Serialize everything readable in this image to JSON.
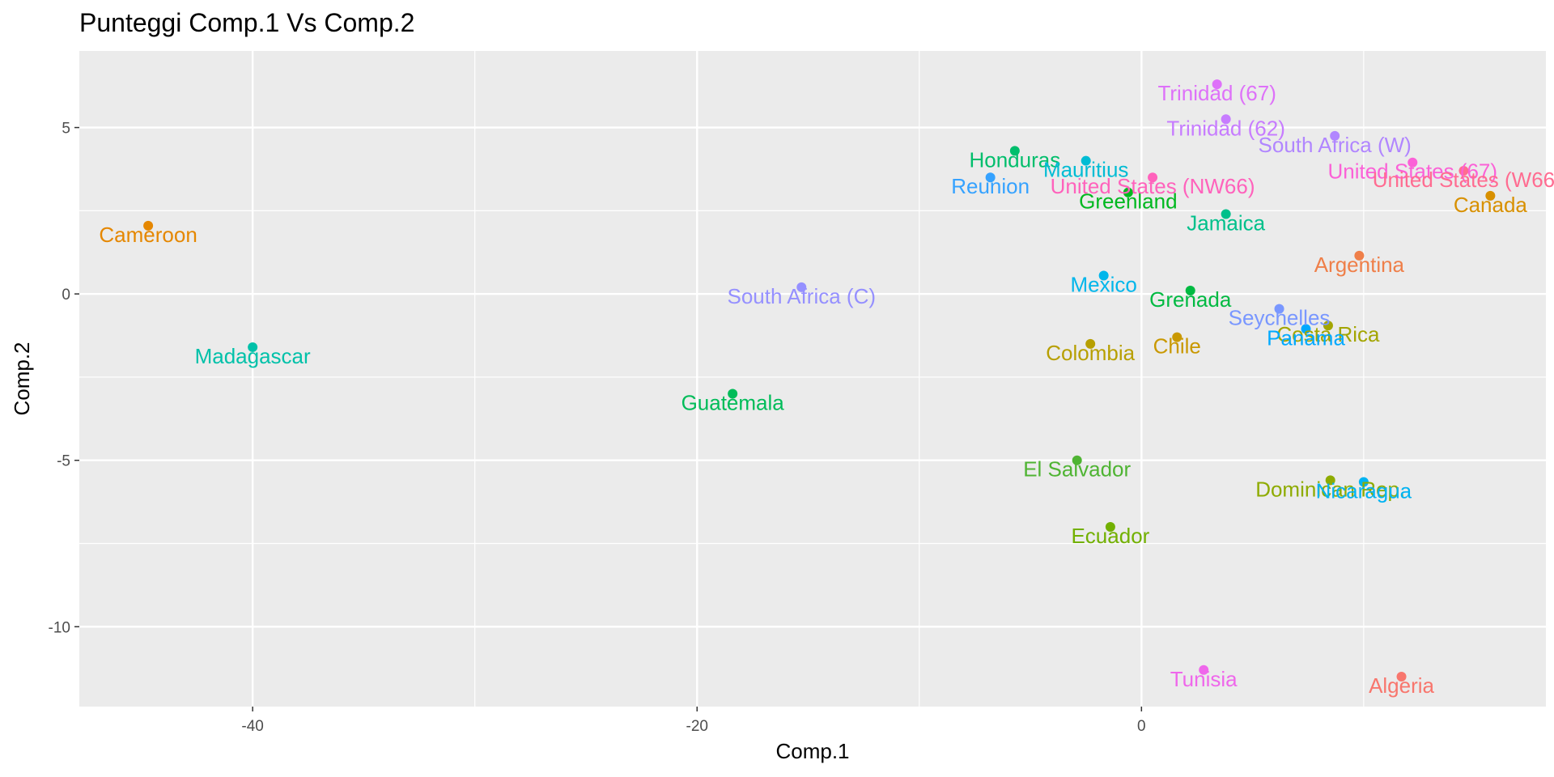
{
  "chart_data": {
    "type": "scatter",
    "title": "Punteggi Comp.1 Vs Comp.2",
    "xlabel": "Comp.1",
    "ylabel": "Comp.2",
    "xlim": [
      -47.8,
      18.2
    ],
    "ylim": [
      -12.4,
      7.3
    ],
    "x_ticks": [
      -40,
      -20,
      0
    ],
    "x_tick_labels": [
      "-40",
      "-20",
      "0"
    ],
    "y_ticks": [
      -10,
      -5,
      0,
      5
    ],
    "y_tick_labels": [
      "-10",
      "-5",
      "0",
      "5"
    ],
    "grid": true,
    "legend": "none",
    "panel_background": "#ebebeb",
    "points": [
      {
        "label": "Algeria",
        "x": 11.7,
        "y": -11.5,
        "color": "#F8766D"
      },
      {
        "label": "Argentina",
        "x": 9.8,
        "y": 1.15,
        "color": "#EF7F49"
      },
      {
        "label": "Cameroon",
        "x": -44.7,
        "y": 2.05,
        "color": "#E58700"
      },
      {
        "label": "Canada",
        "x": 15.7,
        "y": 2.95,
        "color": "#D89000"
      },
      {
        "label": "Chile",
        "x": 1.6,
        "y": -1.3,
        "color": "#C99800"
      },
      {
        "label": "Colombia",
        "x": -2.3,
        "y": -1.5,
        "color": "#B79F00"
      },
      {
        "label": "Costa Rica",
        "x": 8.4,
        "y": -0.95,
        "color": "#A3A500"
      },
      {
        "label": "Dominican Rep.",
        "x": 8.5,
        "y": -5.6,
        "color": "#8EAB00"
      },
      {
        "label": "Ecuador",
        "x": -1.4,
        "y": -7.0,
        "color": "#72B000"
      },
      {
        "label": "El Salvador",
        "x": -2.9,
        "y": -5.0,
        "color": "#4FB433"
      },
      {
        "label": "Greenland",
        "x": -0.6,
        "y": 3.05,
        "color": "#00B81F"
      },
      {
        "label": "Grenada",
        "x": 2.2,
        "y": 0.1,
        "color": "#00BA42"
      },
      {
        "label": "Guatemala",
        "x": -18.4,
        "y": -3.0,
        "color": "#00BC59"
      },
      {
        "label": "Honduras",
        "x": -5.7,
        "y": 4.3,
        "color": "#00BE6C"
      },
      {
        "label": "Jamaica",
        "x": 3.8,
        "y": 2.4,
        "color": "#00C08B"
      },
      {
        "label": "Madagascar",
        "x": -40.0,
        "y": -1.6,
        "color": "#00C1A9"
      },
      {
        "label": "Mauritius",
        "x": -2.5,
        "y": 4.0,
        "color": "#00BCD4"
      },
      {
        "label": "Mexico",
        "x": -1.7,
        "y": 0.55,
        "color": "#00B6EB"
      },
      {
        "label": "Nicaragua",
        "x": 10.0,
        "y": -5.65,
        "color": "#00B3F2"
      },
      {
        "label": "Panama",
        "x": 7.4,
        "y": -1.05,
        "color": "#00A9FF"
      },
      {
        "label": "Reunion",
        "x": -6.8,
        "y": 3.5,
        "color": "#35A2FF"
      },
      {
        "label": "Seychelles",
        "x": 6.2,
        "y": -0.45,
        "color": "#7997FF"
      },
      {
        "label": "South Africa (C)",
        "x": -15.3,
        "y": 0.2,
        "color": "#9590FF"
      },
      {
        "label": "South Africa (W)",
        "x": 8.7,
        "y": 4.75,
        "color": "#B186FF"
      },
      {
        "label": "Trinidad (62)",
        "x": 3.8,
        "y": 5.25,
        "color": "#C77CFF"
      },
      {
        "label": "Trinidad (67)",
        "x": 3.4,
        "y": 6.3,
        "color": "#DE71F9"
      },
      {
        "label": "Tunisia",
        "x": 2.8,
        "y": -11.3,
        "color": "#EF67EB"
      },
      {
        "label": "United States (67)",
        "x": 12.2,
        "y": 3.95,
        "color": "#FB61D7"
      },
      {
        "label": "United States (NW66)",
        "x": 0.5,
        "y": 3.5,
        "color": "#FF62BC"
      },
      {
        "label": "United States (W66",
        "x": 14.5,
        "y": 3.7,
        "color": "#FF6C91"
      }
    ]
  }
}
